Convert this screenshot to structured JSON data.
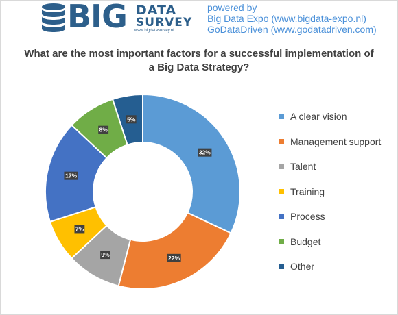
{
  "header": {
    "logo_big": "BIG",
    "logo_data": "DATA",
    "logo_survey": "SURVEY",
    "logo_url": "www.bigdatasurvey.nl",
    "powered_by": "powered by",
    "sponsor1": "Big Data Expo (www.bigdata-expo.nl)",
    "sponsor2": "GoDataDriven (www.godatadriven.com)"
  },
  "chart_data": {
    "type": "pie",
    "donut": true,
    "title": "What are the most important factors for a successful implementation of a Big Data Strategy?",
    "title_line1": "What are the most important factors for a successful implementation of",
    "title_line2": "a Big Data Strategy?",
    "legend_position": "right",
    "categories": [
      "A clear vision",
      "Management support",
      "Talent",
      "Training",
      "Process",
      "Budget",
      "Other"
    ],
    "values": [
      32,
      22,
      9,
      7,
      17,
      8,
      5
    ],
    "data_labels": [
      "32%",
      "22%",
      "9%",
      "7%",
      "17%",
      "8%",
      "5%"
    ],
    "colors": [
      "#5b9bd5",
      "#ed7d31",
      "#a5a5a5",
      "#ffc000",
      "#4472c4",
      "#70ad47",
      "#255e91"
    ]
  }
}
